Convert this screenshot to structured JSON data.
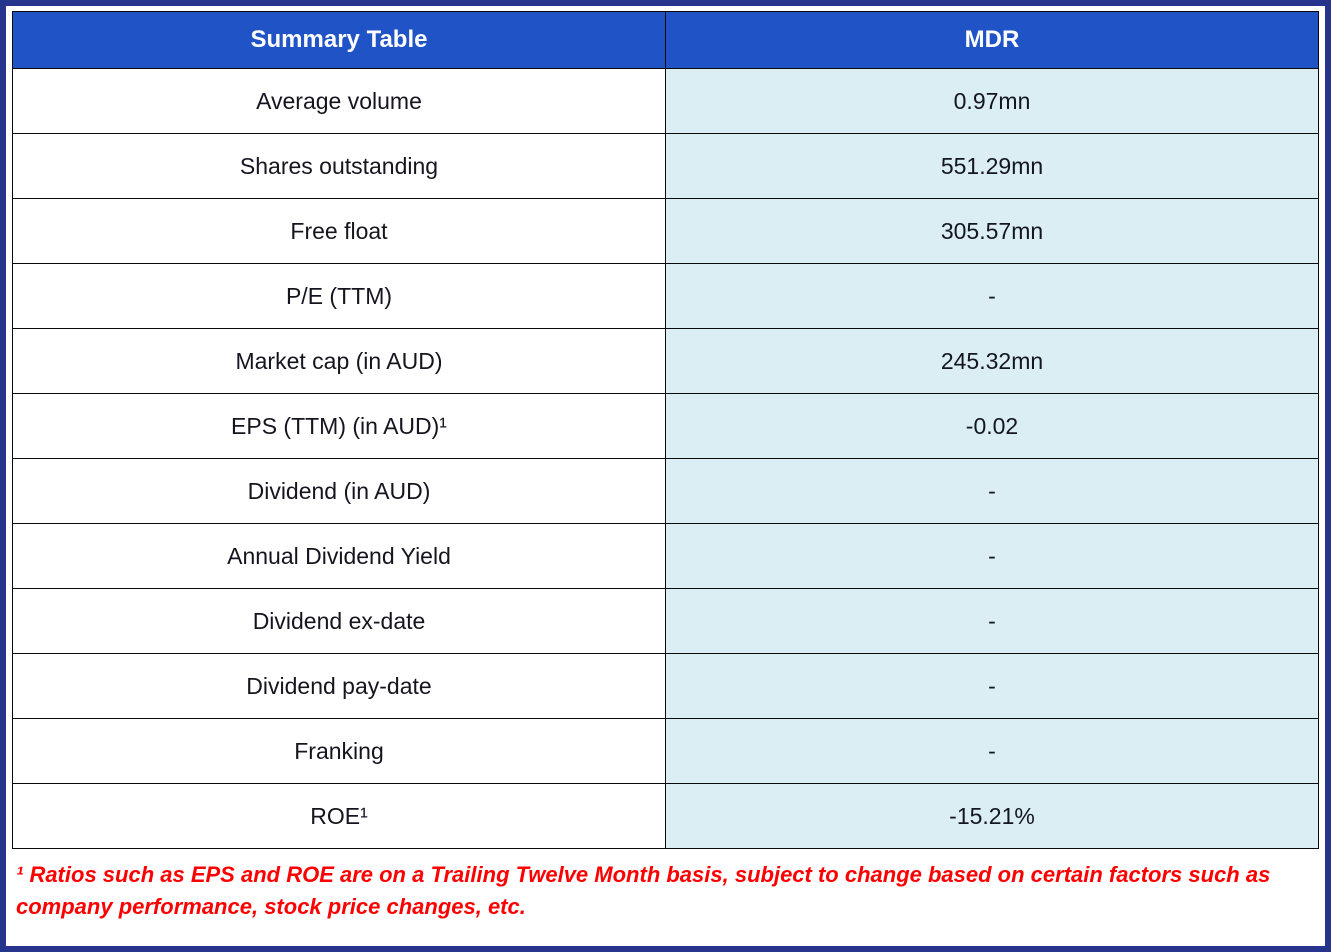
{
  "colors": {
    "outer_border": "#27348B",
    "header_bg": "#2053C5",
    "header_text": "#FFFFFF",
    "label_cell_bg": "#FFFFFF",
    "value_cell_bg": "#DAEEF3",
    "cell_border": "#0A0A0A",
    "body_text": "#15151F",
    "footnote_text": "#FF0000"
  },
  "chart_data": {
    "type": "table",
    "title": "Summary Table",
    "columns": [
      "Summary Table",
      "MDR"
    ],
    "rows": [
      {
        "label": "Average volume",
        "value": "0.97mn"
      },
      {
        "label": "Shares outstanding",
        "value": "551.29mn"
      },
      {
        "label": "Free float",
        "value": "305.57mn"
      },
      {
        "label": "P/E (TTM)",
        "value": "-"
      },
      {
        "label": "Market cap (in AUD)",
        "value": "245.32mn"
      },
      {
        "label": "EPS (TTM) (in AUD)¹",
        "value": "-0.02"
      },
      {
        "label": "Dividend (in AUD)",
        "value": "-"
      },
      {
        "label": "Annual Dividend Yield",
        "value": "-"
      },
      {
        "label": "Dividend ex-date",
        "value": "-"
      },
      {
        "label": "Dividend pay-date",
        "value": "-"
      },
      {
        "label": "Franking",
        "value": "-"
      },
      {
        "label": "ROE¹",
        "value": "-15.21%"
      }
    ],
    "footnote": "¹ Ratios such as EPS and ROE are on a Trailing Twelve Month basis, subject to change based on certain factors such as company performance, stock price changes, etc."
  }
}
